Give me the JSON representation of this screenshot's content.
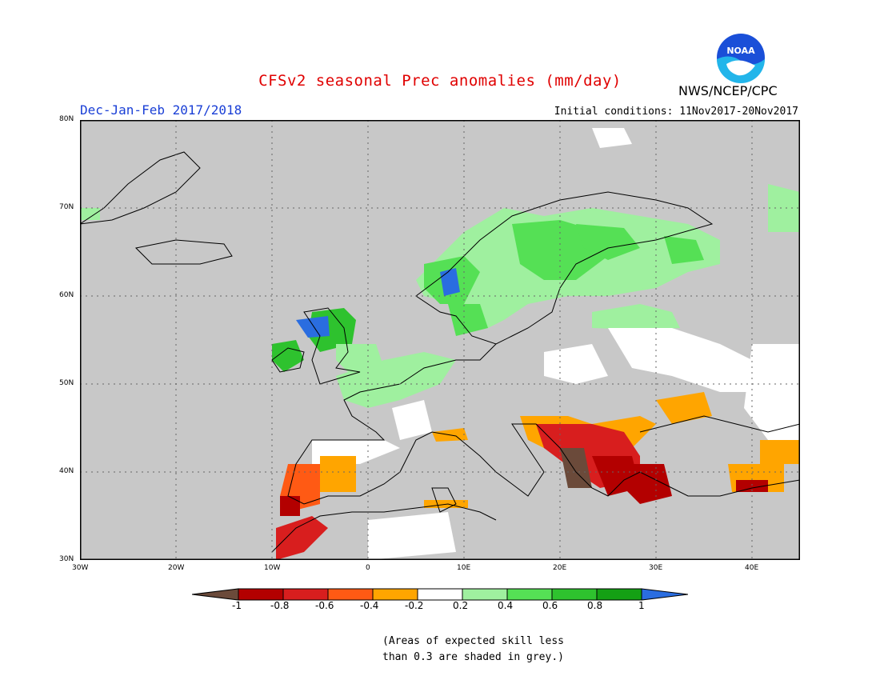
{
  "header": {
    "title": "CFSv2 seasonal Prec anomalies (mm/day)",
    "season": "Dec-Jan-Feb 2017/2018",
    "initial_conditions": "Initial conditions: 11Nov2017-20Nov2017",
    "org": "NWS/NCEP/CPC",
    "logo_text": "NOAA"
  },
  "map": {
    "lat_labels": [
      "80N",
      "70N",
      "60N",
      "50N",
      "40N",
      "30N"
    ],
    "lon_labels": [
      "30W",
      "20W",
      "10W",
      "0",
      "10E",
      "20E",
      "30E",
      "40E"
    ]
  },
  "colorbar": {
    "labels": [
      "-1",
      "-0.8",
      "-0.6",
      "-0.4",
      "-0.2",
      "0.2",
      "0.4",
      "0.6",
      "0.8",
      "1"
    ],
    "colors": [
      "#6b4a3a",
      "#b30000",
      "#d81e1e",
      "#ff5a14",
      "#ffa500",
      "#ffffff",
      "#9ff09f",
      "#55e055",
      "#2ec22e",
      "#14a014",
      "#2a6de0"
    ]
  },
  "note": {
    "line1": "(Areas of expected skill less",
    "line2": "than 0.3 are shaded in grey.)"
  },
  "colors": {
    "no_skill": "#c8c8c8",
    "title": "#e00000",
    "season": "#1a3fd6"
  }
}
